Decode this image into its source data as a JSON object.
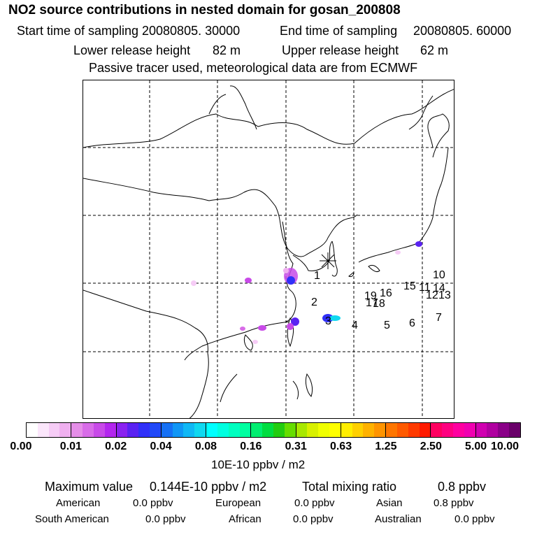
{
  "title": "NO2 source contributions in nested domain for gosan_200808",
  "header": {
    "start_label": "Start time of sampling",
    "start_value": "20080805. 30000",
    "end_label": "End time of sampling",
    "end_value": "20080805. 60000",
    "lower_label": "Lower release height",
    "lower_value": "82 m",
    "upper_label": "Upper release height",
    "upper_value": "62 m",
    "tracer_note": "Passive tracer used, meteorological data are from ECMWF"
  },
  "map": {
    "release_labels": [
      "1",
      "2",
      "3",
      "4",
      "5",
      "6",
      "7",
      "10",
      "15",
      "11",
      "14",
      "12",
      "13",
      "16",
      "19",
      "17",
      "18"
    ]
  },
  "legend": {
    "ticks": [
      "0.00",
      "0.01",
      "0.02",
      "0.04",
      "0.08",
      "0.16",
      "0.31",
      "0.63",
      "1.25",
      "2.50",
      "5.00",
      "10.00"
    ],
    "unit": "10E-10 ppbv / m2",
    "colors": [
      [
        "#ffffff",
        "#fbe6fb",
        "#f6ccf6",
        "#f0b0f0"
      ],
      [
        "#e58ee8",
        "#d86ce8",
        "#c84ae8",
        "#b326ee"
      ],
      [
        "#8a22f0",
        "#5a22f2",
        "#3030f8",
        "#2048f8"
      ],
      [
        "#1570f5",
        "#1096f5",
        "#10b8f5",
        "#10d8f0"
      ],
      [
        "#00ffff",
        "#00ffe0",
        "#00ffc0",
        "#00ffa0"
      ],
      [
        "#00ee70",
        "#00dd40",
        "#22cc10",
        "#66dd00"
      ],
      [
        "#a8e800",
        "#d8f000",
        "#f0ff00",
        "#ffff00"
      ],
      [
        "#ffee00",
        "#ffd000",
        "#ffb200",
        "#ff9400"
      ],
      [
        "#ff7600",
        "#ff5a00",
        "#ff3a00",
        "#ff1a00"
      ],
      [
        "#ff0060",
        "#ff0080",
        "#ff00a0",
        "#f000b0"
      ],
      [
        "#d000b0",
        "#b000a0",
        "#8a0088",
        "#6a006a"
      ]
    ]
  },
  "summary": {
    "max_label": "Maximum value",
    "max_value": "0.144E-10 ppbv / m2",
    "total_label": "Total mixing ratio",
    "total_value": "0.8 ppbv",
    "american_label": "American",
    "american_value": "0.0 ppbv",
    "european_label": "European",
    "european_value": "0.0 ppbv",
    "asian_label": "Asian",
    "asian_value": "0.8 ppbv",
    "south_american_label": "South American",
    "south_american_value": "0.0 ppbv",
    "african_label": "African",
    "african_value": "0.0 ppbv",
    "australian_label": "Australian",
    "australian_value": "0.0 ppbv"
  }
}
